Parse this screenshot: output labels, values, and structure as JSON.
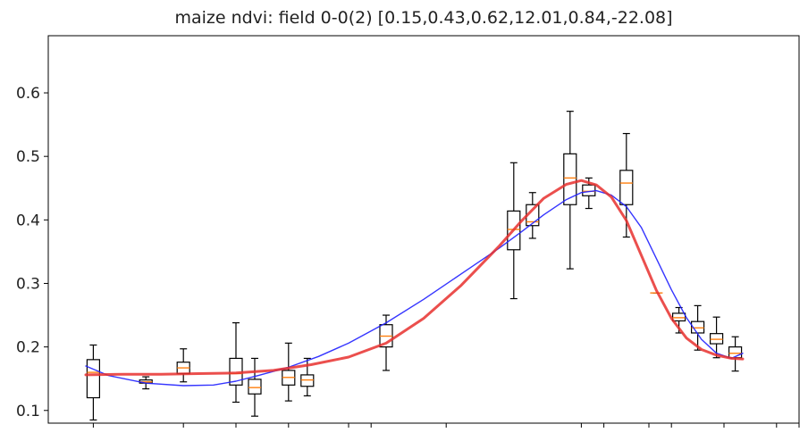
{
  "chart_data": {
    "type": "box",
    "title": "maize ndvi: field 0-0(2) [0.15,0.43,0.62,12.01,0.84,-22.08]",
    "xlabel": "",
    "ylabel": "",
    "ylim": [
      0.08,
      0.69
    ],
    "xlim": [
      0,
      100
    ],
    "y_ticks": [
      0.1,
      0.2,
      0.3,
      0.4,
      0.5,
      0.6
    ],
    "y_tick_labels": [
      "0.1",
      "0.2",
      "0.3",
      "0.4",
      "0.5",
      "0.6"
    ],
    "x_ticks": [
      6,
      18,
      25,
      32,
      40,
      43,
      53,
      71,
      74,
      80,
      83,
      90,
      97,
      100,
      104,
      106
    ],
    "grid": false,
    "legend": "none",
    "colors": {
      "box": "#000000",
      "median": "#ff7f0e",
      "fit_blue": "#1f1fff",
      "fit_red": "#e8302e"
    },
    "boxes": [
      {
        "x": 6,
        "q1": 0.12,
        "med": 0.16,
        "q3": 0.18,
        "lo": 0.085,
        "hi": 0.203
      },
      {
        "x": 13,
        "q1": 0.143,
        "med": 0.145,
        "q3": 0.148,
        "lo": 0.134,
        "hi": 0.153
      },
      {
        "x": 18,
        "q1": 0.158,
        "med": 0.167,
        "q3": 0.176,
        "lo": 0.145,
        "hi": 0.197
      },
      {
        "x": 25,
        "q1": 0.14,
        "med": 0.158,
        "q3": 0.182,
        "lo": 0.113,
        "hi": 0.238
      },
      {
        "x": 27.5,
        "q1": 0.126,
        "med": 0.136,
        "q3": 0.149,
        "lo": 0.091,
        "hi": 0.182
      },
      {
        "x": 32,
        "q1": 0.14,
        "med": 0.152,
        "q3": 0.163,
        "lo": 0.115,
        "hi": 0.206
      },
      {
        "x": 34.5,
        "q1": 0.138,
        "med": 0.148,
        "q3": 0.156,
        "lo": 0.123,
        "hi": 0.182
      },
      {
        "x": 45,
        "q1": 0.2,
        "med": 0.217,
        "q3": 0.235,
        "lo": 0.163,
        "hi": 0.25
      },
      {
        "x": 62,
        "q1": 0.353,
        "med": 0.385,
        "q3": 0.414,
        "lo": 0.276,
        "hi": 0.49
      },
      {
        "x": 64.5,
        "q1": 0.391,
        "med": 0.397,
        "q3": 0.424,
        "lo": 0.371,
        "hi": 0.443
      },
      {
        "x": 69.5,
        "q1": 0.424,
        "med": 0.466,
        "q3": 0.504,
        "lo": 0.323,
        "hi": 0.571
      },
      {
        "x": 72,
        "q1": 0.438,
        "med": 0.445,
        "q3": 0.455,
        "lo": 0.418,
        "hi": 0.466
      },
      {
        "x": 77,
        "q1": 0.424,
        "med": 0.458,
        "q3": 0.478,
        "lo": 0.373,
        "hi": 0.536
      },
      {
        "x": 81,
        "q1": 0.285,
        "med": 0.285,
        "q3": 0.285,
        "lo": 0.285,
        "hi": 0.285
      },
      {
        "x": 84,
        "q1": 0.241,
        "med": 0.246,
        "q3": 0.253,
        "lo": 0.222,
        "hi": 0.262
      },
      {
        "x": 86.5,
        "q1": 0.222,
        "med": 0.23,
        "q3": 0.24,
        "lo": 0.195,
        "hi": 0.265
      },
      {
        "x": 89,
        "q1": 0.205,
        "med": 0.212,
        "q3": 0.221,
        "lo": 0.183,
        "hi": 0.247
      },
      {
        "x": 91.5,
        "q1": 0.183,
        "med": 0.19,
        "q3": 0.2,
        "lo": 0.162,
        "hi": 0.216
      }
    ],
    "series": [
      {
        "color": "#1f1fff",
        "x": [
          5,
          8,
          13,
          18,
          22,
          25,
          28,
          32,
          36,
          40,
          45,
          50,
          55,
          60,
          63,
          66,
          69,
          71,
          73,
          75,
          77,
          79,
          81,
          83,
          85,
          87,
          89,
          91,
          92.5
        ],
        "y": [
          0.17,
          0.155,
          0.143,
          0.139,
          0.14,
          0.146,
          0.155,
          0.168,
          0.185,
          0.206,
          0.238,
          0.275,
          0.315,
          0.355,
          0.381,
          0.408,
          0.432,
          0.443,
          0.446,
          0.439,
          0.421,
          0.388,
          0.339,
          0.29,
          0.246,
          0.212,
          0.19,
          0.182,
          0.19
        ]
      },
      {
        "color": "#e8302e",
        "x": [
          5,
          10,
          15,
          20,
          25,
          30,
          35,
          40,
          45,
          50,
          55,
          60,
          63,
          66,
          69,
          71,
          73,
          75,
          77,
          79,
          81,
          83,
          85,
          87,
          89,
          91,
          92.5
        ],
        "y": [
          0.156,
          0.157,
          0.157,
          0.158,
          0.159,
          0.163,
          0.172,
          0.184,
          0.206,
          0.245,
          0.297,
          0.358,
          0.398,
          0.434,
          0.456,
          0.462,
          0.455,
          0.436,
          0.399,
          0.344,
          0.289,
          0.245,
          0.214,
          0.196,
          0.187,
          0.182,
          0.181
        ]
      }
    ]
  }
}
